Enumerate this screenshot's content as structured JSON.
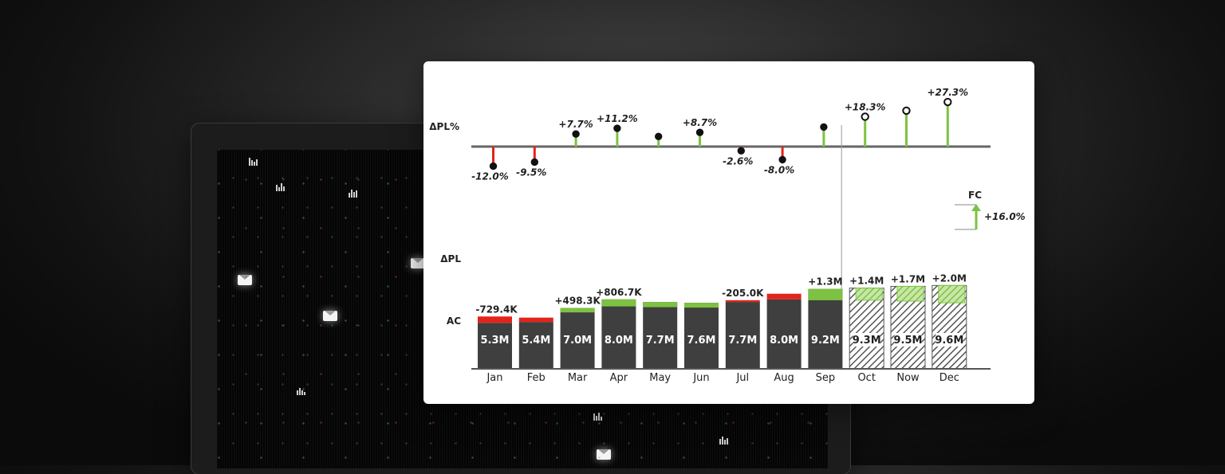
{
  "chart_data": {
    "type": "bar",
    "categories": [
      "Jan",
      "Feb",
      "Mar",
      "Apr",
      "May",
      "Jun",
      "Jul",
      "Aug",
      "Sep",
      "Oct",
      "Now",
      "Dec"
    ],
    "ac_label": "AC",
    "dpl_label": "ΔPL",
    "dplpct_label": "ΔPL%",
    "fc_label": "FC",
    "forecast_start_index": 9,
    "values": [
      5.3,
      5.4,
      7.0,
      8.0,
      7.7,
      7.6,
      7.7,
      8.0,
      9.2,
      9.3,
      9.5,
      9.6
    ],
    "value_labels": [
      "5.3M",
      "5.4M",
      "7.0M",
      "8.0M",
      "7.7M",
      "7.6M",
      "7.7M",
      "8.0M",
      "9.2M",
      "9.3M",
      "9.5M",
      "9.6M"
    ],
    "delta_pl": [
      -0.73,
      -0.5,
      0.5,
      0.81,
      0.6,
      0.55,
      -0.21,
      -0.65,
      1.3,
      1.4,
      1.7,
      2.0
    ],
    "delta_pl_labels": [
      "-729.4K",
      "",
      "+498.3K",
      "+806.7K",
      "",
      "",
      "-205.0K",
      "",
      "+1.3M",
      "+1.4M",
      "+1.7M",
      "+2.0M"
    ],
    "delta_pl_pct": [
      -12.0,
      -9.5,
      7.7,
      11.2,
      6.2,
      8.7,
      -2.6,
      -8.0,
      12.0,
      18.3,
      22.0,
      27.3
    ],
    "delta_pl_pct_labels": [
      "-12.0%",
      "-9.5%",
      "+7.7%",
      "+11.2%",
      "",
      "+8.7%",
      "-2.6%",
      "-8.0%",
      "",
      "+18.3%",
      "",
      "+27.3%"
    ],
    "total_delta_label": "+16.0%",
    "colors": {
      "ac": "#3f3f3f",
      "positive": "#7dc242",
      "negative": "#e3231b",
      "axis": "#555555",
      "text": "#222222"
    }
  }
}
